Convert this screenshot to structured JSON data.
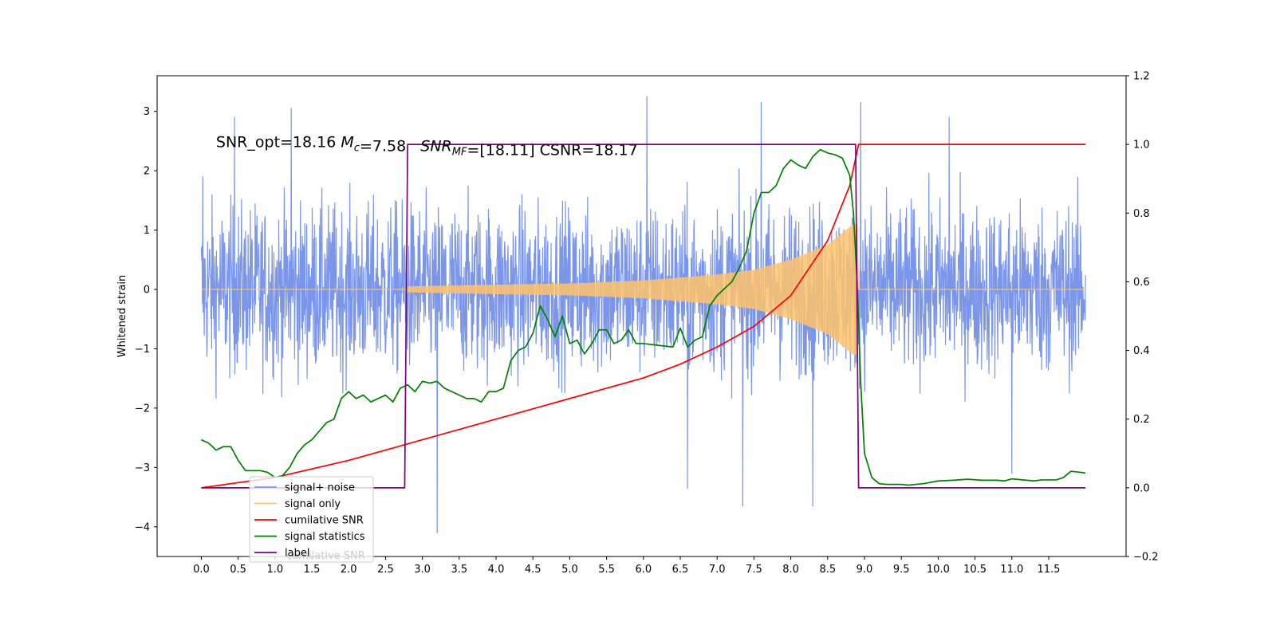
{
  "chart_data": {
    "type": "line",
    "annotation": "SNR_opt=18.16 $M_c$=7.58  $SNR_MF$=[18.11] CSNR=18.17",
    "ylabel": "Whitened strain",
    "xlabel": "",
    "title": "",
    "xlim": [
      -0.6,
      12.55
    ],
    "ylim_left": [
      -4.5,
      3.6
    ],
    "ylim_right": [
      -0.2,
      1.2
    ],
    "x_ticks": [
      "0.0",
      "0.5",
      "1.0",
      "1.5",
      "2.0",
      "2.5",
      "3.0",
      "3.5",
      "4.0",
      "4.5",
      "5.0",
      "5.5",
      "6.0",
      "6.5",
      "7.0",
      "7.5",
      "8.0",
      "8.5",
      "9.0",
      "9.5",
      "10.0",
      "10.5",
      "11.0",
      "11.5"
    ],
    "y_ticks_left": [
      "−4",
      "−3",
      "−2",
      "−1",
      "0",
      "1",
      "2",
      "3"
    ],
    "y_ticks_right": [
      "−0.2",
      "0.0",
      "0.2",
      "0.4",
      "0.6",
      "0.8",
      "1.0",
      "1.2"
    ],
    "grid": false,
    "legend_position": "lower-left",
    "legend": [
      {
        "label": "signal+ noise",
        "color": "#7b96e8"
      },
      {
        "label": "signal only",
        "color": "#ffc36b"
      },
      {
        "label": "cumilative SNR",
        "color": "#ff0000"
      },
      {
        "label": "signal statistics",
        "color": "#008000"
      },
      {
        "label": "label",
        "color": "#800080"
      }
    ],
    "legend_ghost_text": "cumilative SNR",
    "series": [
      {
        "name": "signal+ noise",
        "axis": "left",
        "color": "#7b96e8",
        "x_range": [
          0.0,
          12.0
        ],
        "noise_amplitude_typical": 1.6,
        "notable_spikes": [
          {
            "x": 0.02,
            "y": 1.9
          },
          {
            "x": 0.45,
            "y": 2.9
          },
          {
            "x": 1.22,
            "y": 3.05
          },
          {
            "x": 3.2,
            "y": -4.1
          },
          {
            "x": 6.05,
            "y": 3.25
          },
          {
            "x": 6.6,
            "y": -3.35
          },
          {
            "x": 7.35,
            "y": -3.65
          },
          {
            "x": 7.6,
            "y": 3.15
          },
          {
            "x": 8.3,
            "y": -3.65
          },
          {
            "x": 8.95,
            "y": 3.15
          },
          {
            "x": 10.15,
            "y": 2.9
          },
          {
            "x": 11.0,
            "y": -3.1
          }
        ]
      },
      {
        "name": "signal only",
        "axis": "left",
        "color": "#ffc36b",
        "chirp_start": 2.78,
        "chirp_end": 8.9,
        "envelope": [
          {
            "x": 2.78,
            "y": 0.05
          },
          {
            "x": 4.0,
            "y": 0.08
          },
          {
            "x": 5.0,
            "y": 0.1
          },
          {
            "x": 6.0,
            "y": 0.15
          },
          {
            "x": 7.0,
            "y": 0.25
          },
          {
            "x": 7.5,
            "y": 0.33
          },
          {
            "x": 8.0,
            "y": 0.5
          },
          {
            "x": 8.5,
            "y": 0.75
          },
          {
            "x": 8.85,
            "y": 1.1
          }
        ]
      },
      {
        "name": "cumilative SNR",
        "axis": "right",
        "color": "#ff0000",
        "points": [
          {
            "x": 0.0,
            "y": 0.0
          },
          {
            "x": 1.0,
            "y": 0.03
          },
          {
            "x": 2.0,
            "y": 0.08
          },
          {
            "x": 3.0,
            "y": 0.14
          },
          {
            "x": 4.0,
            "y": 0.2
          },
          {
            "x": 5.0,
            "y": 0.26
          },
          {
            "x": 6.0,
            "y": 0.32
          },
          {
            "x": 6.5,
            "y": 0.36
          },
          {
            "x": 7.0,
            "y": 0.41
          },
          {
            "x": 7.5,
            "y": 0.47
          },
          {
            "x": 8.0,
            "y": 0.56
          },
          {
            "x": 8.5,
            "y": 0.72
          },
          {
            "x": 8.8,
            "y": 0.88
          },
          {
            "x": 8.92,
            "y": 1.0
          },
          {
            "x": 12.0,
            "y": 1.0
          }
        ]
      },
      {
        "name": "signal statistics",
        "axis": "right",
        "color": "#008000",
        "points": [
          {
            "x": 0.0,
            "y": 0.14
          },
          {
            "x": 0.1,
            "y": 0.13
          },
          {
            "x": 0.2,
            "y": 0.11
          },
          {
            "x": 0.3,
            "y": 0.12
          },
          {
            "x": 0.4,
            "y": 0.12
          },
          {
            "x": 0.5,
            "y": 0.08
          },
          {
            "x": 0.6,
            "y": 0.05
          },
          {
            "x": 0.8,
            "y": 0.05
          },
          {
            "x": 0.9,
            "y": 0.045
          },
          {
            "x": 1.0,
            "y": 0.03
          },
          {
            "x": 1.1,
            "y": 0.035
          },
          {
            "x": 1.2,
            "y": 0.06
          },
          {
            "x": 1.3,
            "y": 0.1
          },
          {
            "x": 1.4,
            "y": 0.125
          },
          {
            "x": 1.5,
            "y": 0.14
          },
          {
            "x": 1.7,
            "y": 0.19
          },
          {
            "x": 1.8,
            "y": 0.2
          },
          {
            "x": 1.9,
            "y": 0.26
          },
          {
            "x": 2.0,
            "y": 0.28
          },
          {
            "x": 2.1,
            "y": 0.26
          },
          {
            "x": 2.2,
            "y": 0.27
          },
          {
            "x": 2.3,
            "y": 0.25
          },
          {
            "x": 2.5,
            "y": 0.27
          },
          {
            "x": 2.6,
            "y": 0.25
          },
          {
            "x": 2.7,
            "y": 0.29
          },
          {
            "x": 2.8,
            "y": 0.3
          },
          {
            "x": 2.9,
            "y": 0.28
          },
          {
            "x": 3.0,
            "y": 0.31
          },
          {
            "x": 3.1,
            "y": 0.305
          },
          {
            "x": 3.2,
            "y": 0.31
          },
          {
            "x": 3.3,
            "y": 0.29
          },
          {
            "x": 3.4,
            "y": 0.28
          },
          {
            "x": 3.6,
            "y": 0.26
          },
          {
            "x": 3.7,
            "y": 0.26
          },
          {
            "x": 3.8,
            "y": 0.25
          },
          {
            "x": 3.9,
            "y": 0.28
          },
          {
            "x": 4.0,
            "y": 0.28
          },
          {
            "x": 4.1,
            "y": 0.29
          },
          {
            "x": 4.2,
            "y": 0.37
          },
          {
            "x": 4.3,
            "y": 0.4
          },
          {
            "x": 4.4,
            "y": 0.41
          },
          {
            "x": 4.5,
            "y": 0.45
          },
          {
            "x": 4.6,
            "y": 0.53
          },
          {
            "x": 4.7,
            "y": 0.49
          },
          {
            "x": 4.8,
            "y": 0.44
          },
          {
            "x": 4.9,
            "y": 0.5
          },
          {
            "x": 5.0,
            "y": 0.42
          },
          {
            "x": 5.1,
            "y": 0.43
          },
          {
            "x": 5.2,
            "y": 0.39
          },
          {
            "x": 5.3,
            "y": 0.42
          },
          {
            "x": 5.4,
            "y": 0.46
          },
          {
            "x": 5.5,
            "y": 0.46
          },
          {
            "x": 5.6,
            "y": 0.42
          },
          {
            "x": 5.7,
            "y": 0.43
          },
          {
            "x": 5.8,
            "y": 0.46
          },
          {
            "x": 5.9,
            "y": 0.42
          },
          {
            "x": 6.0,
            "y": 0.42
          },
          {
            "x": 6.2,
            "y": 0.415
          },
          {
            "x": 6.4,
            "y": 0.41
          },
          {
            "x": 6.5,
            "y": 0.465
          },
          {
            "x": 6.6,
            "y": 0.41
          },
          {
            "x": 6.7,
            "y": 0.43
          },
          {
            "x": 6.8,
            "y": 0.44
          },
          {
            "x": 6.9,
            "y": 0.53
          },
          {
            "x": 7.0,
            "y": 0.56
          },
          {
            "x": 7.1,
            "y": 0.58
          },
          {
            "x": 7.2,
            "y": 0.6
          },
          {
            "x": 7.3,
            "y": 0.64
          },
          {
            "x": 7.4,
            "y": 0.69
          },
          {
            "x": 7.5,
            "y": 0.8
          },
          {
            "x": 7.6,
            "y": 0.86
          },
          {
            "x": 7.7,
            "y": 0.86
          },
          {
            "x": 7.8,
            "y": 0.88
          },
          {
            "x": 7.9,
            "y": 0.93
          },
          {
            "x": 8.0,
            "y": 0.955
          },
          {
            "x": 8.1,
            "y": 0.94
          },
          {
            "x": 8.2,
            "y": 0.93
          },
          {
            "x": 8.3,
            "y": 0.965
          },
          {
            "x": 8.4,
            "y": 0.985
          },
          {
            "x": 8.5,
            "y": 0.975
          },
          {
            "x": 8.6,
            "y": 0.97
          },
          {
            "x": 8.7,
            "y": 0.96
          },
          {
            "x": 8.8,
            "y": 0.91
          },
          {
            "x": 8.85,
            "y": 0.8
          },
          {
            "x": 8.9,
            "y": 0.6
          },
          {
            "x": 8.95,
            "y": 0.3
          },
          {
            "x": 9.0,
            "y": 0.1
          },
          {
            "x": 9.1,
            "y": 0.03
          },
          {
            "x": 9.2,
            "y": 0.012
          },
          {
            "x": 9.3,
            "y": 0.01
          },
          {
            "x": 9.5,
            "y": 0.01
          },
          {
            "x": 9.6,
            "y": 0.008
          },
          {
            "x": 9.8,
            "y": 0.012
          },
          {
            "x": 10.0,
            "y": 0.02
          },
          {
            "x": 10.2,
            "y": 0.022
          },
          {
            "x": 10.4,
            "y": 0.025
          },
          {
            "x": 10.6,
            "y": 0.022
          },
          {
            "x": 10.8,
            "y": 0.022
          },
          {
            "x": 10.9,
            "y": 0.02
          },
          {
            "x": 11.0,
            "y": 0.026
          },
          {
            "x": 11.2,
            "y": 0.022
          },
          {
            "x": 11.3,
            "y": 0.02
          },
          {
            "x": 11.4,
            "y": 0.023
          },
          {
            "x": 11.6,
            "y": 0.023
          },
          {
            "x": 11.7,
            "y": 0.03
          },
          {
            "x": 11.8,
            "y": 0.048
          },
          {
            "x": 11.9,
            "y": 0.046
          },
          {
            "x": 12.0,
            "y": 0.043
          }
        ]
      },
      {
        "name": "label",
        "axis": "right",
        "color": "#800080",
        "points": [
          {
            "x": 0.0,
            "y": 0.0
          },
          {
            "x": 2.76,
            "y": 0.0
          },
          {
            "x": 2.8,
            "y": 1.0
          },
          {
            "x": 8.88,
            "y": 1.0
          },
          {
            "x": 8.92,
            "y": 0.0
          },
          {
            "x": 12.0,
            "y": 0.0
          }
        ]
      }
    ]
  }
}
